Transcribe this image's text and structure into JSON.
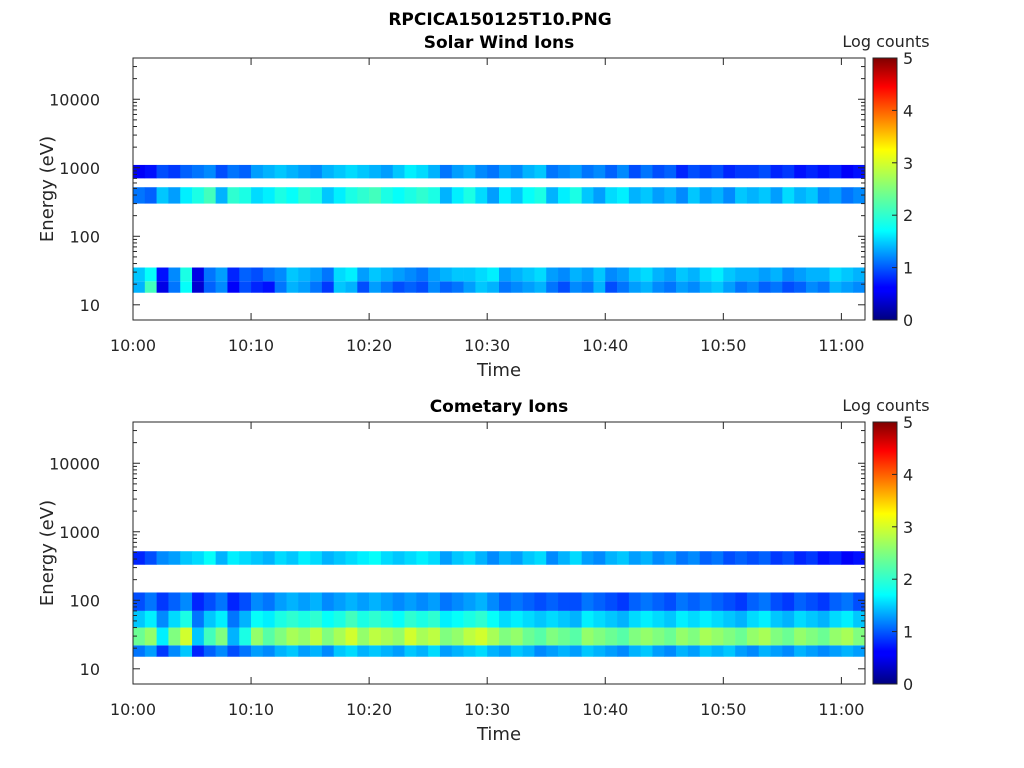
{
  "figure": {
    "title": "RPCICA150125T10.PNG"
  },
  "chart_data": [
    {
      "type": "heatmap",
      "title": "Solar Wind Ions",
      "xlabel": "Time",
      "ylabel": "Energy (eV)",
      "xticks": [
        "10:00",
        "10:10",
        "10:20",
        "10:30",
        "10:40",
        "10:50",
        "11:00"
      ],
      "xlim": [
        "10:00",
        "11:02"
      ],
      "yscale": "log",
      "ylim": [
        6,
        40000
      ],
      "yticks": [
        10,
        100,
        1000,
        10000
      ],
      "ytick_labels": [
        "10",
        "100",
        "1000",
        "10000"
      ],
      "colorbar": {
        "label": "Log counts",
        "range": [
          0,
          5
        ],
        "ticks": [
          "0",
          "1",
          "2",
          "3",
          "4",
          "5"
        ],
        "colormap": "jet"
      },
      "time_bins_min": [
        0,
        1,
        2,
        3,
        4,
        5,
        6,
        7,
        8,
        9,
        10,
        11,
        12,
        13,
        14,
        15,
        16,
        17,
        18,
        19,
        20,
        21,
        22,
        23,
        24,
        25,
        26,
        27,
        28,
        29,
        30,
        31,
        32,
        33,
        34,
        35,
        36,
        37,
        38,
        39,
        40,
        41,
        42,
        43,
        44,
        45,
        46,
        47,
        48,
        49,
        50,
        51,
        52,
        53,
        54,
        55,
        56,
        57,
        58,
        59,
        60,
        61
      ],
      "bands": [
        {
          "energy_range_eV": [
            15,
            22
          ],
          "log_counts": [
            1.5,
            2.2,
            0.5,
            1.2,
            1.9,
            0.4,
            1.1,
            1.3,
            0.6,
            1.0,
            0.8,
            0.7,
            1.2,
            1.5,
            1.4,
            1.2,
            0.9,
            1.6,
            1.5,
            1.0,
            1.4,
            1.2,
            1.0,
            1.1,
            1.0,
            1.3,
            1.1,
            1.2,
            1.4,
            1.6,
            1.5,
            1.2,
            1.3,
            1.4,
            1.5,
            1.2,
            1.0,
            1.3,
            1.2,
            1.5,
            1.0,
            1.2,
            1.4,
            1.5,
            1.3,
            1.2,
            1.4,
            1.3,
            1.5,
            1.6,
            1.4,
            1.2,
            1.3,
            1.1,
            1.2,
            1.0,
            1.1,
            1.3,
            1.2,
            1.5,
            1.4,
            1.3
          ]
        },
        {
          "energy_range_eV": [
            22,
            35
          ],
          "log_counts": [
            1.6,
            1.9,
            0.7,
            1.3,
            2.0,
            0.5,
            1.2,
            1.4,
            0.8,
            1.1,
            1.0,
            1.2,
            1.3,
            1.6,
            1.5,
            1.4,
            1.2,
            1.7,
            1.8,
            1.4,
            1.6,
            1.5,
            1.4,
            1.3,
            1.2,
            1.4,
            1.5,
            1.6,
            1.6,
            1.7,
            1.8,
            1.4,
            1.5,
            1.6,
            1.7,
            1.4,
            1.3,
            1.5,
            1.4,
            1.6,
            1.3,
            1.4,
            1.6,
            1.7,
            1.5,
            1.4,
            1.6,
            1.5,
            1.7,
            1.8,
            1.6,
            1.5,
            1.5,
            1.4,
            1.5,
            1.3,
            1.4,
            1.5,
            1.5,
            1.7,
            1.6,
            1.5
          ]
        },
        {
          "energy_range_eV": [
            300,
            520
          ],
          "log_counts": [
            1.2,
            1.1,
            1.6,
            1.4,
            1.8,
            2.0,
            2.2,
            1.5,
            2.1,
            2.0,
            1.7,
            1.8,
            2.0,
            1.9,
            2.1,
            2.0,
            1.6,
            1.8,
            2.0,
            2.1,
            2.2,
            2.0,
            1.9,
            2.0,
            2.1,
            2.0,
            1.5,
            1.8,
            2.0,
            1.7,
            1.4,
            1.8,
            1.6,
            1.9,
            2.0,
            1.5,
            1.8,
            2.0,
            1.6,
            1.4,
            1.7,
            1.8,
            1.5,
            1.6,
            1.4,
            1.5,
            1.3,
            1.6,
            1.4,
            1.5,
            1.3,
            1.6,
            1.5,
            1.6,
            1.4,
            1.7,
            1.5,
            1.6,
            1.3,
            1.4,
            1.2,
            1.3
          ]
        },
        {
          "energy_range_eV": [
            700,
            1100
          ],
          "log_counts": [
            0.6,
            0.7,
            1.0,
            0.9,
            1.1,
            1.2,
            1.3,
            1.0,
            1.2,
            1.1,
            1.4,
            1.5,
            1.6,
            1.5,
            1.4,
            1.3,
            1.5,
            1.6,
            1.7,
            1.6,
            1.5,
            1.4,
            1.6,
            1.8,
            1.7,
            1.5,
            1.2,
            1.4,
            1.5,
            1.3,
            1.2,
            1.4,
            1.3,
            1.5,
            1.6,
            1.2,
            1.3,
            1.4,
            1.2,
            1.3,
            1.1,
            1.3,
            1.0,
            1.2,
            1.0,
            1.1,
            0.8,
            1.0,
            0.9,
            1.0,
            0.8,
            0.9,
            0.9,
            1.0,
            0.8,
            0.9,
            0.7,
            0.8,
            0.7,
            0.8,
            0.6,
            0.7
          ]
        }
      ]
    },
    {
      "type": "heatmap",
      "title": "Cometary Ions",
      "xlabel": "Time",
      "ylabel": "Energy (eV)",
      "xticks": [
        "10:00",
        "10:10",
        "10:20",
        "10:30",
        "10:40",
        "10:50",
        "11:00"
      ],
      "xlim": [
        "10:00",
        "11:02"
      ],
      "yscale": "log",
      "ylim": [
        6,
        40000
      ],
      "yticks": [
        10,
        100,
        1000,
        10000
      ],
      "ytick_labels": [
        "10",
        "100",
        "1000",
        "10000"
      ],
      "colorbar": {
        "label": "Log counts",
        "range": [
          0,
          5
        ],
        "ticks": [
          "0",
          "1",
          "2",
          "3",
          "4",
          "5"
        ],
        "colormap": "jet"
      },
      "time_bins_min": [
        0,
        1,
        2,
        3,
        4,
        5,
        6,
        7,
        8,
        9,
        10,
        11,
        12,
        13,
        14,
        15,
        16,
        17,
        18,
        19,
        20,
        21,
        22,
        23,
        24,
        25,
        26,
        27,
        28,
        29,
        30,
        31,
        32,
        33,
        34,
        35,
        36,
        37,
        38,
        39,
        40,
        41,
        42,
        43,
        44,
        45,
        46,
        47,
        48,
        49,
        50,
        51,
        52,
        53,
        54,
        55,
        56,
        57,
        58,
        59,
        60,
        61
      ],
      "bands": [
        {
          "energy_range_eV": [
            15,
            22
          ],
          "log_counts": [
            1.2,
            1.4,
            0.9,
            1.3,
            1.6,
            0.8,
            1.1,
            1.3,
            1.0,
            1.2,
            1.4,
            1.3,
            1.5,
            1.6,
            1.4,
            1.5,
            1.3,
            1.6,
            1.7,
            1.5,
            1.6,
            1.5,
            1.4,
            1.6,
            1.5,
            1.7,
            1.4,
            1.5,
            1.6,
            1.7,
            1.5,
            1.4,
            1.6,
            1.5,
            1.3,
            1.4,
            1.5,
            1.4,
            1.6,
            1.5,
            1.4,
            1.3,
            1.5,
            1.6,
            1.4,
            1.3,
            1.5,
            1.4,
            1.6,
            1.5,
            1.6,
            1.4,
            1.3,
            1.5,
            1.4,
            1.3,
            1.5,
            1.4,
            1.3,
            1.4,
            1.5,
            1.4
          ]
        },
        {
          "energy_range_eV": [
            22,
            40
          ],
          "log_counts": [
            2.4,
            2.6,
            1.8,
            2.5,
            2.9,
            1.6,
            2.2,
            2.5,
            1.5,
            2.0,
            2.6,
            2.3,
            2.5,
            2.7,
            2.6,
            2.8,
            2.5,
            2.7,
            2.9,
            2.6,
            2.8,
            2.7,
            2.6,
            2.9,
            2.7,
            2.8,
            2.5,
            2.6,
            2.8,
            2.9,
            2.7,
            2.5,
            2.6,
            2.4,
            2.3,
            2.5,
            2.4,
            2.3,
            2.6,
            2.5,
            2.4,
            2.3,
            2.5,
            2.6,
            2.5,
            2.4,
            2.6,
            2.5,
            2.7,
            2.6,
            2.5,
            2.4,
            2.6,
            2.7,
            2.5,
            2.4,
            2.6,
            2.5,
            2.4,
            2.6,
            2.7,
            2.5
          ]
        },
        {
          "energy_range_eV": [
            40,
            70
          ],
          "log_counts": [
            1.6,
            1.8,
            1.3,
            1.7,
            2.0,
            1.2,
            1.6,
            1.8,
            1.2,
            1.5,
            1.9,
            1.8,
            2.0,
            2.1,
            2.0,
            2.1,
            1.9,
            2.0,
            2.2,
            2.0,
            2.1,
            2.0,
            1.9,
            2.1,
            2.0,
            2.1,
            1.8,
            1.9,
            2.0,
            2.1,
            1.9,
            1.7,
            1.8,
            1.7,
            1.6,
            1.7,
            1.6,
            1.5,
            1.8,
            1.7,
            1.6,
            1.5,
            1.7,
            1.8,
            1.7,
            1.6,
            1.8,
            1.7,
            1.8,
            1.7,
            1.6,
            1.5,
            1.7,
            1.8,
            1.6,
            1.5,
            1.7,
            1.6,
            1.5,
            1.7,
            1.8,
            1.6
          ]
        },
        {
          "energy_range_eV": [
            70,
            130
          ],
          "log_counts": [
            1.0,
            1.2,
            0.9,
            1.1,
            1.3,
            0.8,
            1.0,
            1.2,
            0.8,
            1.0,
            1.3,
            1.2,
            1.4,
            1.5,
            1.4,
            1.5,
            1.3,
            1.4,
            1.5,
            1.4,
            1.5,
            1.4,
            1.3,
            1.4,
            1.3,
            1.4,
            1.2,
            1.3,
            1.4,
            1.5,
            1.3,
            1.1,
            1.2,
            1.1,
            1.0,
            1.1,
            1.0,
            1.0,
            1.2,
            1.1,
            1.0,
            0.9,
            1.1,
            1.2,
            1.1,
            1.0,
            1.2,
            1.1,
            1.2,
            1.1,
            1.0,
            0.9,
            1.1,
            1.2,
            1.0,
            0.9,
            1.1,
            1.0,
            0.9,
            1.1,
            1.2,
            1.0
          ]
        },
        {
          "energy_range_eV": [
            330,
            520
          ],
          "log_counts": [
            0.8,
            1.0,
            1.3,
            1.4,
            1.6,
            1.7,
            1.9,
            1.5,
            1.8,
            1.7,
            1.6,
            1.5,
            1.7,
            1.6,
            1.8,
            1.7,
            1.5,
            1.6,
            1.7,
            1.8,
            1.9,
            1.7,
            1.6,
            1.7,
            1.8,
            1.7,
            1.4,
            1.6,
            1.7,
            1.5,
            1.3,
            1.5,
            1.4,
            1.6,
            1.7,
            1.3,
            1.5,
            1.7,
            1.4,
            1.3,
            1.5,
            1.6,
            1.4,
            1.5,
            1.3,
            1.4,
            1.2,
            1.3,
            1.1,
            1.2,
            1.0,
            1.1,
            1.0,
            1.1,
            0.9,
            1.0,
            0.8,
            0.9,
            0.7,
            0.8,
            0.6,
            0.7
          ]
        }
      ]
    }
  ]
}
